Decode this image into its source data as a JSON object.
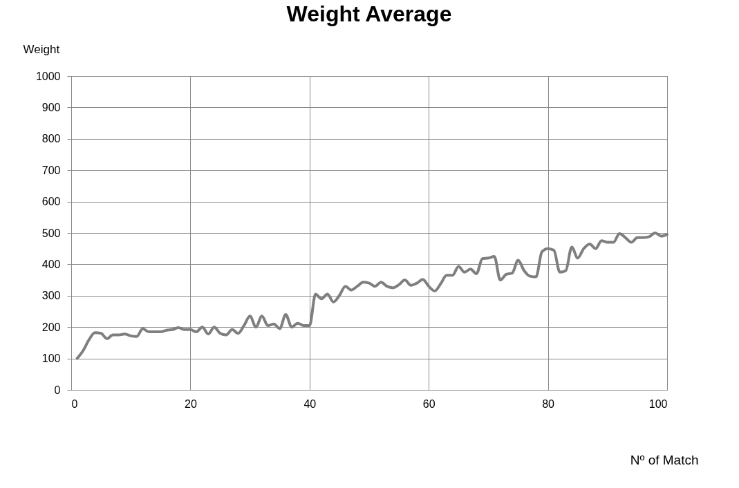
{
  "chart_data": {
    "type": "line",
    "title": "Weight Average",
    "xlabel": "Nº of Match",
    "ylabel": "Weight",
    "x": [
      1,
      2,
      3,
      4,
      5,
      6,
      7,
      8,
      9,
      10,
      11,
      12,
      13,
      14,
      15,
      16,
      17,
      18,
      19,
      20,
      21,
      22,
      23,
      24,
      25,
      26,
      27,
      28,
      29,
      30,
      31,
      32,
      33,
      34,
      35,
      36,
      37,
      38,
      39,
      40,
      41,
      42,
      43,
      44,
      45,
      46,
      47,
      48,
      49,
      50,
      51,
      52,
      53,
      54,
      55,
      56,
      57,
      58,
      59,
      60,
      61,
      62,
      63,
      64,
      65,
      66,
      67,
      68,
      69,
      70,
      71,
      72,
      73,
      74,
      75,
      76,
      77,
      78,
      79,
      80,
      81,
      82,
      83,
      84,
      85,
      86,
      87,
      88,
      89,
      90,
      91,
      92,
      93,
      94,
      95,
      96,
      97,
      98,
      99,
      100
    ],
    "series": [
      {
        "color": "#7f7f7f",
        "values": [
          100,
          125,
          160,
          182,
          180,
          163,
          175,
          175,
          178,
          172,
          170,
          195,
          185,
          185,
          185,
          190,
          192,
          198,
          192,
          192,
          185,
          200,
          178,
          200,
          180,
          175,
          192,
          180,
          205,
          235,
          200,
          235,
          205,
          210,
          195,
          240,
          200,
          212,
          205,
          205,
          305,
          290,
          305,
          280,
          300,
          330,
          318,
          330,
          343,
          340,
          330,
          343,
          330,
          325,
          335,
          350,
          333,
          340,
          352,
          330,
          315,
          338,
          365,
          365,
          393,
          375,
          385,
          370,
          418,
          420,
          425,
          350,
          368,
          372,
          413,
          380,
          362,
          360,
          440,
          450,
          445,
          375,
          380,
          455,
          420,
          450,
          465,
          450,
          475,
          470,
          470,
          498,
          485,
          470,
          485,
          485,
          488,
          500,
          490,
          495
        ]
      }
    ],
    "xlim": [
      0,
      100
    ],
    "xticks": [
      0,
      20,
      40,
      60,
      80,
      100
    ],
    "ylim": [
      0,
      1000
    ],
    "yticks": [
      0,
      100,
      200,
      300,
      400,
      500,
      600,
      700,
      800,
      900,
      1000
    ],
    "grid": true,
    "marker": "none",
    "line_style": "solid"
  }
}
